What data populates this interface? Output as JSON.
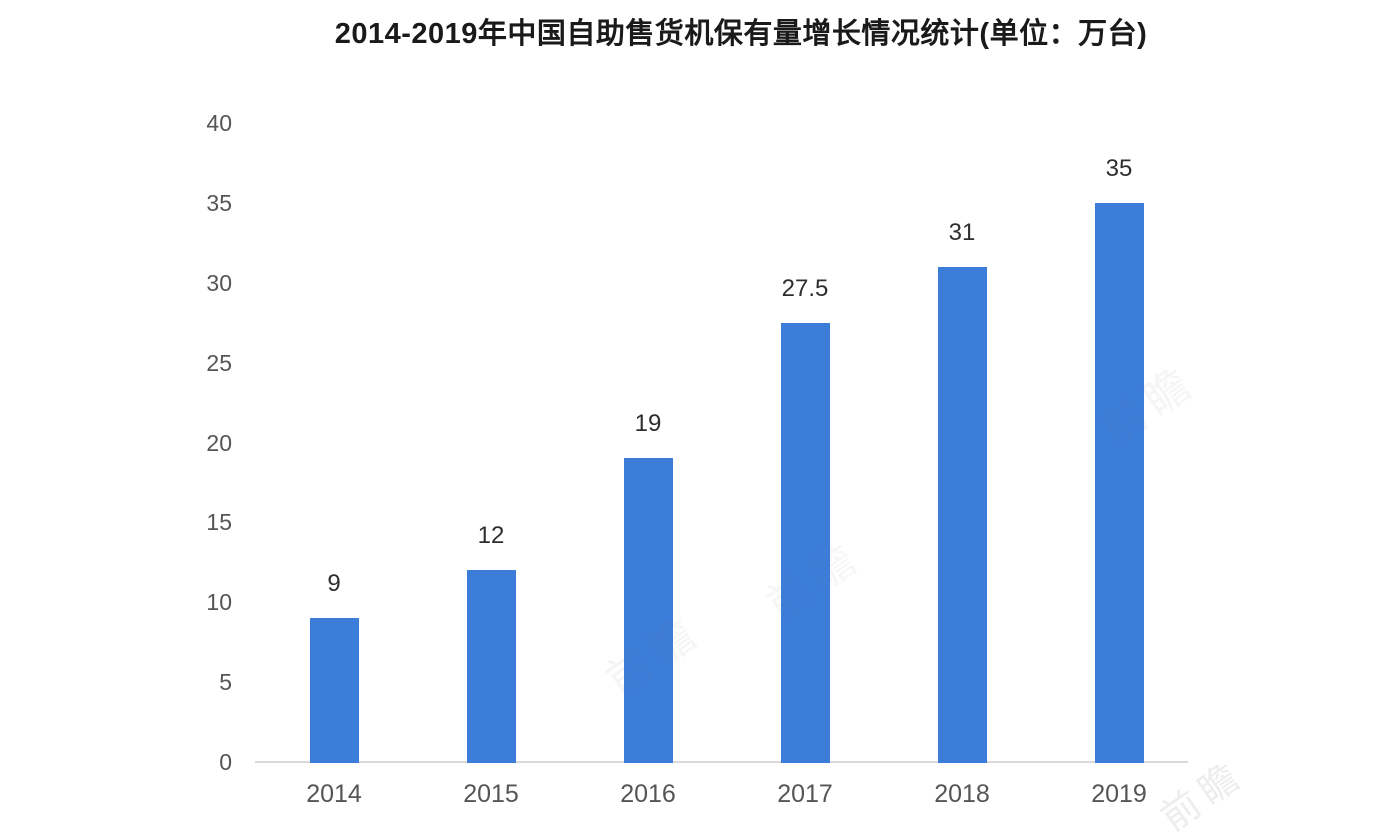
{
  "title": "2014-2019年中国自助售货机保有量增长情况统计(单位：万台)",
  "watermark": {
    "text": "前瞻"
  },
  "chart_data": {
    "type": "bar",
    "title": "2014-2019年中国自助售货机保有量增长情况统计(单位：万台)",
    "categories": [
      "2014",
      "2015",
      "2016",
      "2017",
      "2018",
      "2019"
    ],
    "values": [
      9,
      12,
      19,
      27.5,
      31,
      35
    ],
    "value_labels": [
      "9",
      "12",
      "19",
      "27.5",
      "31",
      "35"
    ],
    "unit": "万台",
    "xlabel": "",
    "ylabel": "",
    "ylim": [
      0,
      40
    ],
    "yticks": [
      0,
      5,
      10,
      15,
      20,
      25,
      30,
      35,
      40
    ],
    "grid": false,
    "legend": "none",
    "bar_color": "#3c7dda",
    "axis_line_color": "#d9d9d9",
    "tick_label_color": "#555555",
    "value_label_color": "#2e2e2e",
    "title_color": "#1a1a1a",
    "background_color": "#ffffff"
  }
}
